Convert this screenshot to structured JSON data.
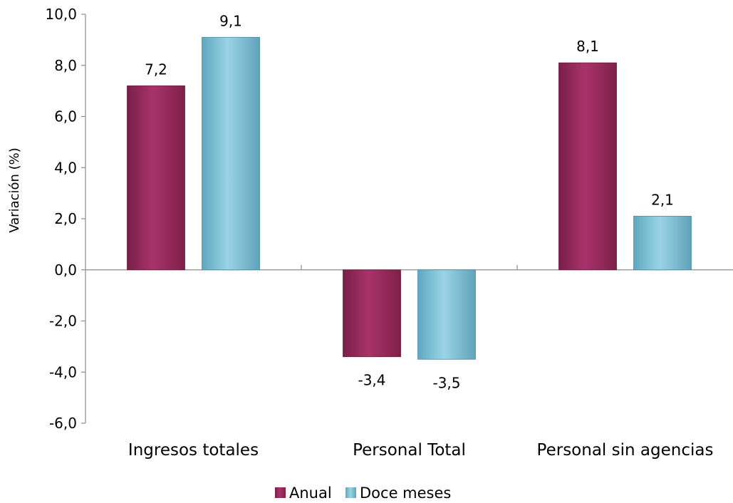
{
  "chart_data": {
    "type": "bar",
    "title": "",
    "xlabel": "",
    "ylabel": "Variación (%)",
    "ylim": [
      -6,
      10
    ],
    "yticks": [
      "10,0",
      "8,0",
      "6,0",
      "4,0",
      "2,0",
      "0,0",
      "-2,0",
      "-4,0",
      "-6,0"
    ],
    "ytick_values": [
      10,
      8,
      6,
      4,
      2,
      0,
      -2,
      -4,
      -6
    ],
    "categories": [
      "Ingresos totales",
      "Personal Total",
      "Personal sin agencias"
    ],
    "series": [
      {
        "name": "Anual",
        "values": [
          7.2,
          -3.4,
          8.1
        ],
        "labels": [
          "7,2",
          "-3,4",
          "8,1"
        ],
        "color": "#9B2C5E"
      },
      {
        "name": "Doce meses",
        "values": [
          9.1,
          -3.5,
          2.1
        ],
        "labels": [
          "9,1",
          "-3,5",
          "2,1"
        ],
        "color": "#7DBFD4"
      }
    ],
    "legend_position": "bottom",
    "grid": false
  }
}
